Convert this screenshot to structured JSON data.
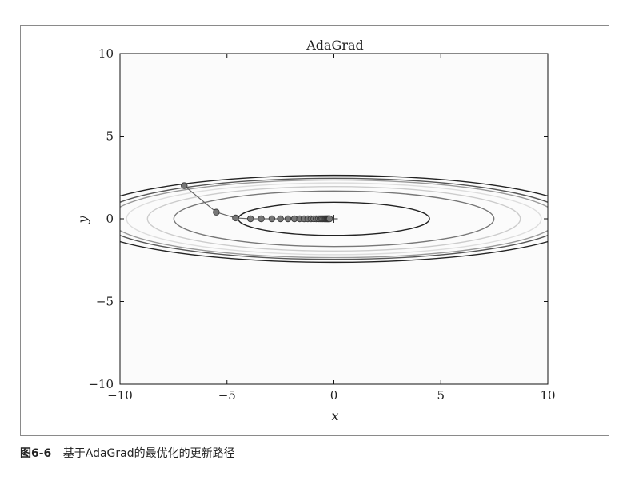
{
  "figure": {
    "caption_number": "图6-6",
    "caption_text": "基于AdaGrad的最优化的更新路径"
  },
  "chart_data": {
    "type": "line",
    "title": "AdaGrad",
    "xlabel": "x",
    "ylabel": "y",
    "xlim": [
      -10,
      10
    ],
    "ylim": [
      -10,
      10
    ],
    "xticks": [
      -10,
      -5,
      0,
      5,
      10
    ],
    "yticks": [
      -10,
      -5,
      0,
      5,
      10
    ],
    "xtick_labels": [
      "−10",
      "−5",
      "0",
      "5",
      "10"
    ],
    "ytick_labels": [
      "−10",
      "−5",
      "0",
      "5",
      "10"
    ],
    "grid": false,
    "function": "f(x, y) = x^2/20 + y^2",
    "contour_levels": [
      {
        "level": 1.0,
        "color": "#222222"
      },
      {
        "level": 2.8,
        "color": "#777777"
      },
      {
        "level": 3.8,
        "color": "#cccccc"
      },
      {
        "level": 4.7,
        "color": "#dddddd"
      },
      {
        "level": 5.5,
        "color": "#999999"
      },
      {
        "level": 6.0,
        "color": "#555555"
      },
      {
        "level": 6.9,
        "color": "#222222"
      }
    ],
    "series": [
      {
        "x": [
          -7.0,
          -5.5,
          -4.6,
          -3.9,
          -3.4,
          -2.9,
          -2.5,
          -2.15,
          -1.85,
          -1.6,
          -1.4,
          -1.22,
          -1.07,
          -0.94,
          -0.83,
          -0.73,
          -0.65,
          -0.58,
          -0.52,
          -0.46,
          -0.41,
          -0.37,
          -0.33,
          -0.3,
          -0.27,
          -0.24,
          -0.22,
          -0.2
        ],
        "y": [
          2.0,
          0.4,
          0.05,
          0.0,
          0.0,
          0.0,
          0.0,
          0.0,
          0.0,
          0.0,
          0.0,
          0.0,
          0.0,
          0.0,
          0.0,
          0.0,
          0.0,
          0.0,
          0.0,
          0.0,
          0.0,
          0.0,
          0.0,
          0.0,
          0.0,
          0.0,
          0.0,
          0.0
        ],
        "marker_color": "#777777",
        "line_color": "#666666"
      }
    ],
    "target_point": {
      "x": 0,
      "y": 0
    }
  }
}
